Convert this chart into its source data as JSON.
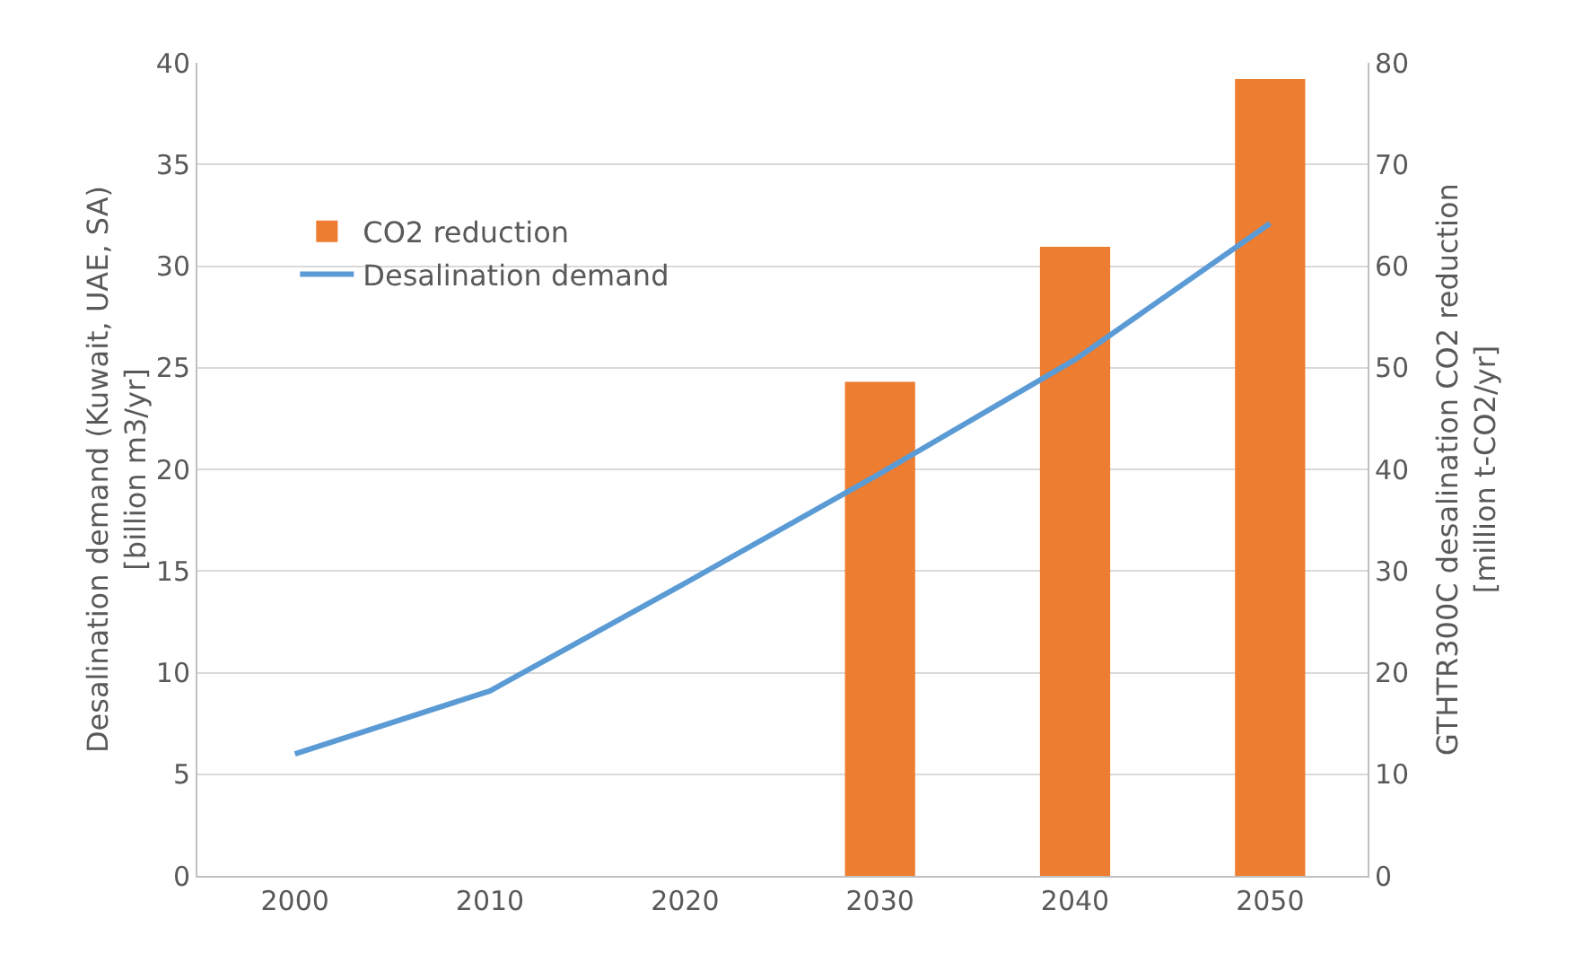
{
  "chart_data": {
    "type": "bar",
    "categories": [
      "2000",
      "2010",
      "2020",
      "2030",
      "2040",
      "2050"
    ],
    "series": [
      {
        "name": "CO2 reduction",
        "axis": "y2",
        "color": "#ed7d31",
        "values": [
          null,
          null,
          null,
          48.6,
          61.9,
          78.4
        ]
      },
      {
        "name": "Desalination demand",
        "type": "line",
        "color": "#5b9bd5",
        "values": [
          6.0,
          9.1,
          14.4,
          19.8,
          25.4,
          32.1
        ]
      }
    ],
    "ylabel": "Desalination demand (Kuwait, UAE, SA)\n[billion m3/yr]",
    "y2label": "GTHTR300C desalination CO2 reduction\n[million t-CO2/yr]",
    "ylim": [
      0,
      40
    ],
    "yticks": [
      0,
      5,
      10,
      15,
      20,
      25,
      30,
      35,
      40
    ],
    "y2lim": [
      0,
      80
    ],
    "y2ticks": [
      0,
      10,
      20,
      30,
      40,
      50,
      60,
      70,
      80
    ],
    "grid": "y",
    "legend": "top left",
    "marker": "none",
    "line_style": "solid"
  }
}
